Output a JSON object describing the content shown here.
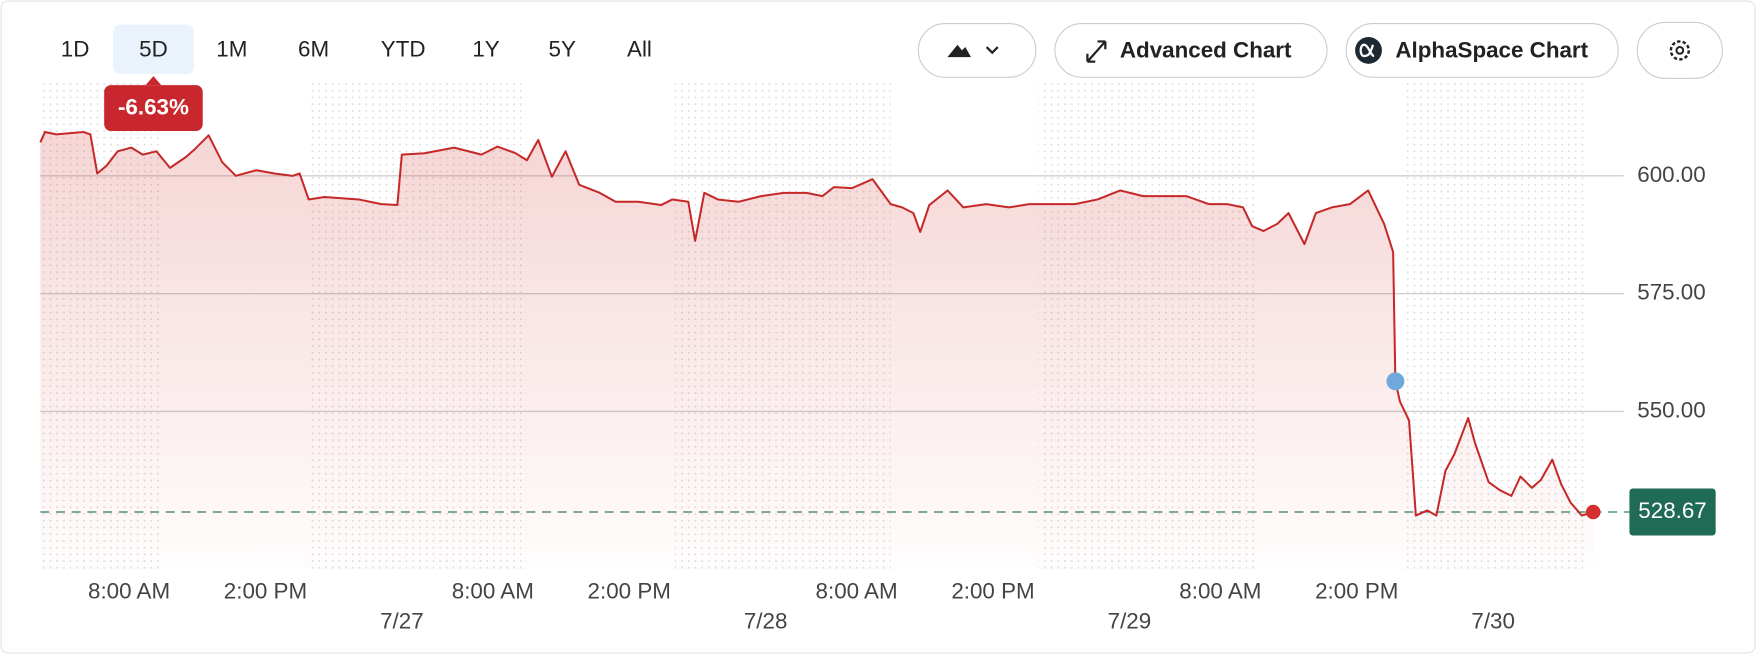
{
  "toolbar": {
    "ranges": [
      "1D",
      "5D",
      "1M",
      "6M",
      "YTD",
      "1Y",
      "5Y",
      "All"
    ],
    "selected_index": 1,
    "buttons": [
      "Advanced Chart",
      "AlphaSpace Chart"
    ]
  },
  "chart_data": {
    "type": "line",
    "color": "#c62828",
    "change": {
      "value": -6.63,
      "label": "-6.63%"
    },
    "last_price": 528.67,
    "x": [
      0.1,
      0.3,
      0.8,
      2.0,
      2.3,
      2.6,
      3.0,
      3.5,
      4.1,
      4.6,
      5.2,
      5.8,
      6.5,
      6.9,
      7.5,
      8.1,
      8.7,
      9.6,
      10.4,
      11.2,
      11.5,
      11.9,
      12.6,
      14.1,
      15.1,
      15.8,
      16.0,
      17.0,
      18.3,
      19.5,
      20.2,
      21.0,
      21.5,
      22.0,
      22.6,
      23.2,
      23.8,
      24.7,
      25.4,
      26.4,
      27.4,
      27.9,
      28.6,
      28.9,
      29.3,
      29.9,
      30.8,
      31.8,
      32.8,
      33.8,
      34.5,
      35.0,
      35.8,
      36.7,
      37.5,
      38.0,
      38.5,
      38.8,
      39.2,
      40.0,
      40.7,
      41.7,
      42.7,
      43.6,
      44.6,
      45.6,
      46.6,
      47.6,
      48.6,
      49.6,
      50.5,
      51.5,
      52.3,
      53.0,
      53.4,
      53.9,
      54.5,
      55.0,
      55.7,
      56.2,
      56.9,
      57.7,
      58.5,
      59.2,
      59.4,
      59.6,
      59.7,
      59.9,
      60.3,
      60.6,
      61.1,
      61.5,
      61.9,
      62.3,
      62.9,
      63.2,
      63.8,
      64.3,
      64.8,
      65.2,
      65.7,
      66.1,
      66.6,
      67.0,
      67.4,
      67.9,
      68.4
    ],
    "values": [
      607.1,
      609.3,
      608.8,
      609.3,
      608.8,
      600.5,
      602.1,
      605.2,
      606.0,
      604.5,
      605.2,
      601.7,
      604.0,
      605.7,
      608.6,
      602.9,
      600.0,
      601.2,
      600.5,
      600.0,
      600.5,
      595.0,
      595.5,
      595.0,
      594.0,
      593.8,
      604.5,
      604.8,
      606.0,
      604.5,
      606.2,
      604.8,
      603.3,
      607.6,
      599.8,
      605.2,
      598.1,
      596.4,
      594.5,
      594.5,
      593.8,
      595.0,
      594.5,
      586.2,
      596.4,
      595.0,
      594.5,
      595.7,
      596.4,
      596.4,
      595.7,
      597.6,
      597.4,
      599.3,
      594.0,
      593.3,
      592.1,
      588.1,
      593.8,
      596.9,
      593.3,
      594.0,
      593.3,
      594.0,
      594.0,
      594.0,
      595.0,
      596.9,
      595.7,
      595.7,
      595.7,
      594.0,
      594.0,
      593.3,
      589.3,
      588.3,
      589.8,
      592.1,
      585.5,
      592.1,
      593.3,
      594.0,
      596.9,
      589.8,
      586.9,
      583.8,
      556.4,
      552.1,
      548.1,
      527.9,
      529.0,
      527.9,
      537.4,
      541.0,
      548.6,
      543.3,
      535.0,
      533.3,
      532.1,
      536.2,
      533.8,
      535.5,
      539.8,
      534.5,
      530.7,
      527.9,
      528.67
    ],
    "xlim": [
      0,
      69.5
    ],
    "xticks": [
      {
        "value": 4,
        "label": "8:00 AM"
      },
      {
        "value": 10,
        "label": "2:00 PM"
      },
      {
        "value": 20,
        "label": "8:00 AM"
      },
      {
        "value": 26,
        "label": "2:00 PM"
      },
      {
        "value": 36,
        "label": "8:00 AM"
      },
      {
        "value": 42,
        "label": "2:00 PM"
      },
      {
        "value": 52,
        "label": "8:00 AM"
      },
      {
        "value": 58,
        "label": "2:00 PM"
      }
    ],
    "date_ticks": [
      {
        "value": 16,
        "label": "7/27"
      },
      {
        "value": 32,
        "label": "7/28"
      },
      {
        "value": 48,
        "label": "7/29"
      },
      {
        "value": 64,
        "label": "7/30"
      }
    ],
    "ylim": [
      516.6,
      620.2
    ],
    "yticks": [
      {
        "value": 600,
        "label": "600.00"
      },
      {
        "value": 575,
        "label": "575.00"
      },
      {
        "value": 550,
        "label": "550.00"
      }
    ],
    "grid": true
  }
}
